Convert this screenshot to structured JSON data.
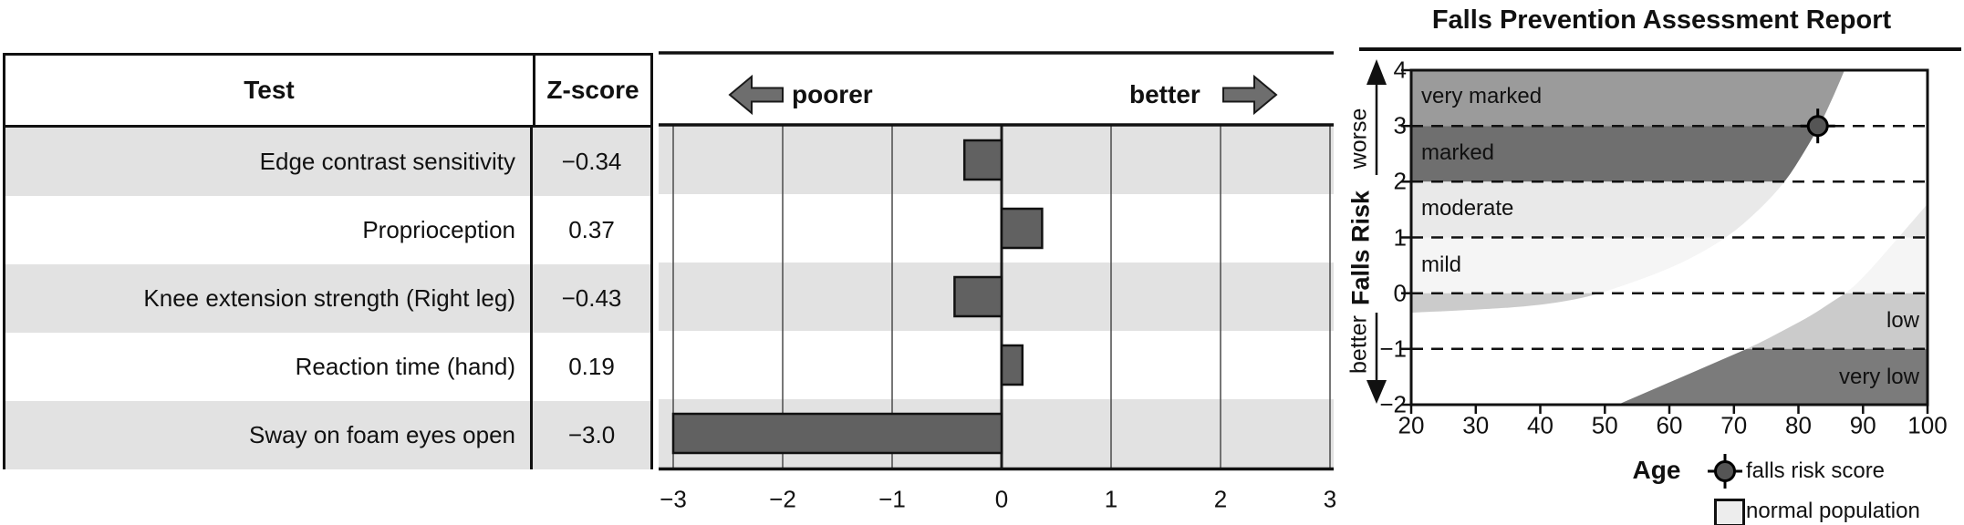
{
  "table": {
    "headers": {
      "test": "Test",
      "zscore": "Z-score"
    },
    "rows": [
      {
        "name": "Edge contrast sensitivity",
        "z": "−0.34"
      },
      {
        "name": "Proprioception",
        "z": "0.37"
      },
      {
        "name": "Knee extension strength (Right leg)",
        "z": "−0.43"
      },
      {
        "name": "Reaction time (hand)",
        "z": "0.19"
      },
      {
        "name": "Sway on foam eyes open",
        "z": "−3.0"
      }
    ]
  },
  "bar_chart": {
    "direction_left": "poorer",
    "direction_right": "better",
    "ticks": [
      "−3",
      "−2",
      "−1",
      "0",
      "1",
      "2",
      "3"
    ]
  },
  "falls_chart": {
    "title": "Falls Prevention Assessment Report",
    "y_ticks": [
      "4",
      "3",
      "2",
      "1",
      "0",
      "−1",
      "−2"
    ],
    "x_ticks": [
      "20",
      "30",
      "40",
      "50",
      "60",
      "70",
      "80",
      "90",
      "100"
    ],
    "xlabel": "Age",
    "ylabel": "Falls Risk",
    "worse": "worse",
    "better": "better",
    "regions": [
      "very marked",
      "marked",
      "moderate",
      "mild",
      "low",
      "very low"
    ],
    "legend": {
      "marker": "falls risk score",
      "band": "normal population"
    }
  },
  "chart_data": [
    {
      "type": "bar",
      "orientation": "horizontal",
      "title": "Z-score profile",
      "categories": [
        "Edge contrast sensitivity",
        "Proprioception",
        "Knee extension strength (Right leg)",
        "Reaction time (hand)",
        "Sway on foam eyes open"
      ],
      "values": [
        -0.34,
        0.37,
        -0.43,
        0.19,
        -3.0
      ],
      "xlabel": "Z-score",
      "xlim": [
        -3,
        3
      ],
      "xticks": [
        -3,
        -2,
        -1,
        0,
        1,
        2,
        3
      ],
      "annotations": [
        "poorer (left)",
        "better (right)"
      ],
      "bar_color": "#616161",
      "row_shade_color": "#e2e2e2"
    },
    {
      "type": "area",
      "title": "Falls Prevention Assessment Report",
      "xlabel": "Age",
      "ylabel": "Falls Risk",
      "xlim": [
        20,
        100
      ],
      "ylim": [
        -2,
        4
      ],
      "grid": "dashed horizontal at -1,0,1,2,3",
      "legend_position": "below",
      "zones": [
        {
          "label": "very marked",
          "from": 3,
          "to": 4,
          "color": "#9b9b9b"
        },
        {
          "label": "marked",
          "from": 2,
          "to": 3,
          "color": "#6f6f6f"
        },
        {
          "label": "moderate",
          "from": 1,
          "to": 2,
          "color": "#e9e9e9"
        },
        {
          "label": "mild",
          "from": 0,
          "to": 1,
          "color": "#f5f5f5"
        },
        {
          "label": "low",
          "from": -1,
          "to": 0,
          "color": "#cbcbcb"
        },
        {
          "label": "very low",
          "from": -2,
          "to": -1,
          "color": "#7b7b7b"
        }
      ],
      "normal_band": {
        "upper": [
          [
            20,
            -0.35
          ],
          [
            30,
            -0.3
          ],
          [
            40,
            -0.22
          ],
          [
            47,
            -0.08
          ],
          [
            52,
            0.1
          ],
          [
            58,
            0.35
          ],
          [
            63,
            0.6
          ],
          [
            69,
            1.0
          ],
          [
            74,
            1.5
          ],
          [
            78,
            2.0
          ],
          [
            81,
            2.55
          ],
          [
            83.5,
            3.05
          ],
          [
            85.5,
            3.55
          ],
          [
            87.5,
            4.1
          ]
        ],
        "lower": [
          [
            50,
            -2.1
          ],
          [
            57,
            -1.75
          ],
          [
            63,
            -1.45
          ],
          [
            68,
            -1.2
          ],
          [
            73,
            -0.95
          ],
          [
            78,
            -0.65
          ],
          [
            82,
            -0.4
          ],
          [
            85,
            -0.17
          ],
          [
            88,
            0.05
          ],
          [
            91,
            0.4
          ],
          [
            94,
            0.8
          ],
          [
            97,
            1.2
          ],
          [
            100,
            1.6
          ]
        ]
      },
      "marker": {
        "age": 83,
        "score": 3.0,
        "label": "falls risk score"
      },
      "legend": [
        "falls risk score",
        "normal population"
      ]
    }
  ]
}
